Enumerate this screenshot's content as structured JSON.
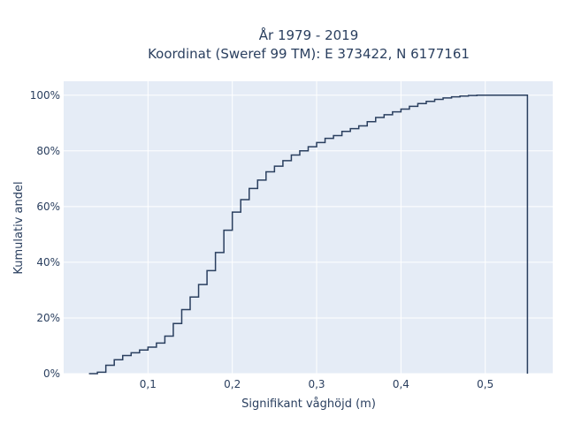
{
  "chart_data": {
    "type": "line",
    "line_shape": "step",
    "title_lines": [
      "År 1979 - 2019",
      "Koordinat (Sweref 99 TM): E 373422, N 6177161"
    ],
    "xlabel": "Signifikant våghöjd (m)",
    "ylabel": "Kumulativ andel",
    "xlim": [
      0.0,
      0.58
    ],
    "ylim": [
      0,
      105
    ],
    "x_ticks": [
      0.1,
      0.2,
      0.3,
      0.4,
      0.5
    ],
    "x_tick_labels": [
      "0,1",
      "0,2",
      "0,3",
      "0,4",
      "0,5"
    ],
    "y_ticks": [
      0,
      20,
      40,
      60,
      80,
      100
    ],
    "y_tick_labels": [
      "0%",
      "20%",
      "40%",
      "60%",
      "80%",
      "100%"
    ],
    "grid": true,
    "legend": "none",
    "colors": {
      "background": "#e5ecf6",
      "grid": "#ffffff",
      "line": "#2a3f5f"
    },
    "series": [
      {
        "x": [
          0.03,
          0.04,
          0.05,
          0.06,
          0.07,
          0.08,
          0.09,
          0.1,
          0.11,
          0.12,
          0.13,
          0.14,
          0.15,
          0.16,
          0.17,
          0.18,
          0.19,
          0.2,
          0.21,
          0.22,
          0.23,
          0.24,
          0.25,
          0.26,
          0.27,
          0.28,
          0.29,
          0.3,
          0.31,
          0.32,
          0.33,
          0.34,
          0.35,
          0.36,
          0.37,
          0.38,
          0.39,
          0.4,
          0.41,
          0.42,
          0.43,
          0.44,
          0.45,
          0.46,
          0.47,
          0.48,
          0.49,
          0.5,
          0.51,
          0.52,
          0.53,
          0.54,
          0.55
        ],
        "y": [
          0,
          0.5,
          3,
          5,
          6.5,
          7.5,
          8.5,
          9.5,
          11,
          13.5,
          18,
          23,
          27.5,
          32,
          37,
          43.5,
          51.5,
          58,
          62.5,
          66.5,
          69.5,
          72.5,
          74.5,
          76.5,
          78.5,
          80,
          81.5,
          83,
          84.5,
          85.5,
          87,
          88,
          89,
          90.5,
          92,
          93,
          94,
          95,
          96,
          97,
          97.8,
          98.5,
          99,
          99.4,
          99.7,
          99.9,
          100,
          100,
          100,
          100,
          100,
          100,
          0
        ]
      }
    ]
  }
}
